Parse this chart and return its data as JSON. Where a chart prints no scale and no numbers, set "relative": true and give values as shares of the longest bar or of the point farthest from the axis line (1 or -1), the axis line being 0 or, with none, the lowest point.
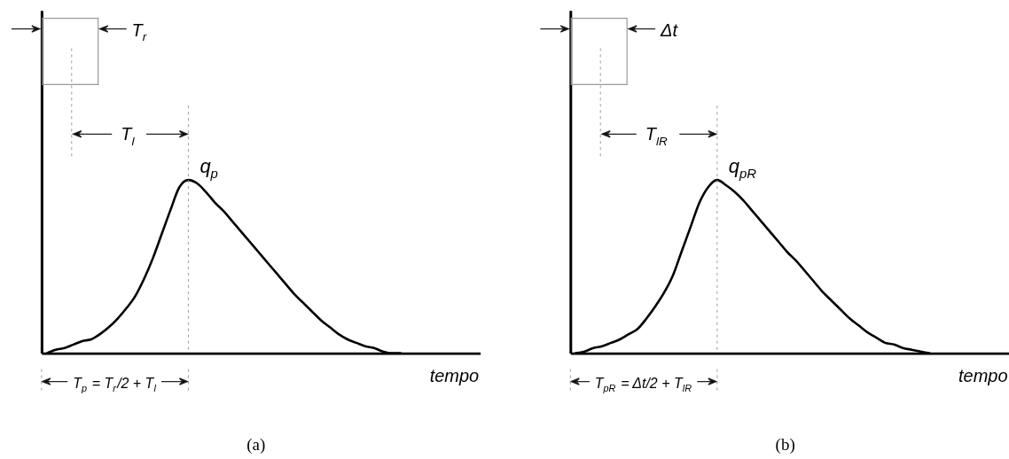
{
  "chart_data": [
    {
      "type": "line",
      "relative": true,
      "xlabel": "tempo",
      "categories": [
        null,
        null,
        null,
        null,
        null,
        null,
        null,
        null,
        null,
        null,
        null,
        null,
        null,
        null,
        null,
        null,
        null,
        null,
        null,
        null,
        null,
        null,
        null,
        null,
        null,
        null,
        null,
        null,
        null,
        null,
        null,
        null,
        null,
        null,
        null,
        null,
        null,
        null,
        null,
        null,
        null
      ],
      "series": [
        {
          "color": "#000000",
          "values": [
            0,
            0.02,
            0.03,
            0.05,
            0.07,
            0.08,
            0.11,
            0.15,
            0.2,
            0.26,
            0.33,
            0.43,
            0.55,
            0.69,
            0.83,
            0.96,
            1,
            0.98,
            0.93,
            0.87,
            0.82,
            0.76,
            0.7,
            0.64,
            0.58,
            0.52,
            0.46,
            0.4,
            0.34,
            0.29,
            0.24,
            0.19,
            0.15,
            0.11,
            0.08,
            0.06,
            0.04,
            0.03,
            0.01,
            0,
            0
          ]
        }
      ],
      "annotations": [
        "T$_{r}$",
        "T$_{l}$",
        "q$_{p}$",
        "T$_{p}$ = T$_{r}$/2 + T$_{l}$",
        "(a)"
      ]
    },
    {
      "type": "line",
      "relative": true,
      "xlabel": "tempo",
      "categories": [
        null,
        null,
        null,
        null,
        null,
        null,
        null,
        null,
        null,
        null,
        null,
        null,
        null,
        null,
        null,
        null,
        null,
        null,
        null,
        null,
        null,
        null,
        null,
        null,
        null,
        null,
        null,
        null,
        null,
        null,
        null,
        null,
        null,
        null,
        null,
        null,
        null,
        null,
        null,
        null,
        null
      ],
      "series": [
        {
          "color": "#000000",
          "values": [
            0,
            0.01,
            0.03,
            0.04,
            0.06,
            0.08,
            0.11,
            0.14,
            0.2,
            0.27,
            0.35,
            0.45,
            0.59,
            0.73,
            0.87,
            0.96,
            1,
            0.97,
            0.93,
            0.88,
            0.82,
            0.76,
            0.7,
            0.64,
            0.58,
            0.53,
            0.47,
            0.41,
            0.35,
            0.3,
            0.25,
            0.2,
            0.16,
            0.12,
            0.09,
            0.06,
            0.05,
            0.03,
            0.02,
            0.01,
            0
          ]
        }
      ],
      "annotations": [
        "Δt",
        "T$_{lR}$",
        "q$_{pR}$",
        "T$_{pR}$ = Δt/2 + T$_{lR}$",
        "(b)"
      ]
    }
  ]
}
